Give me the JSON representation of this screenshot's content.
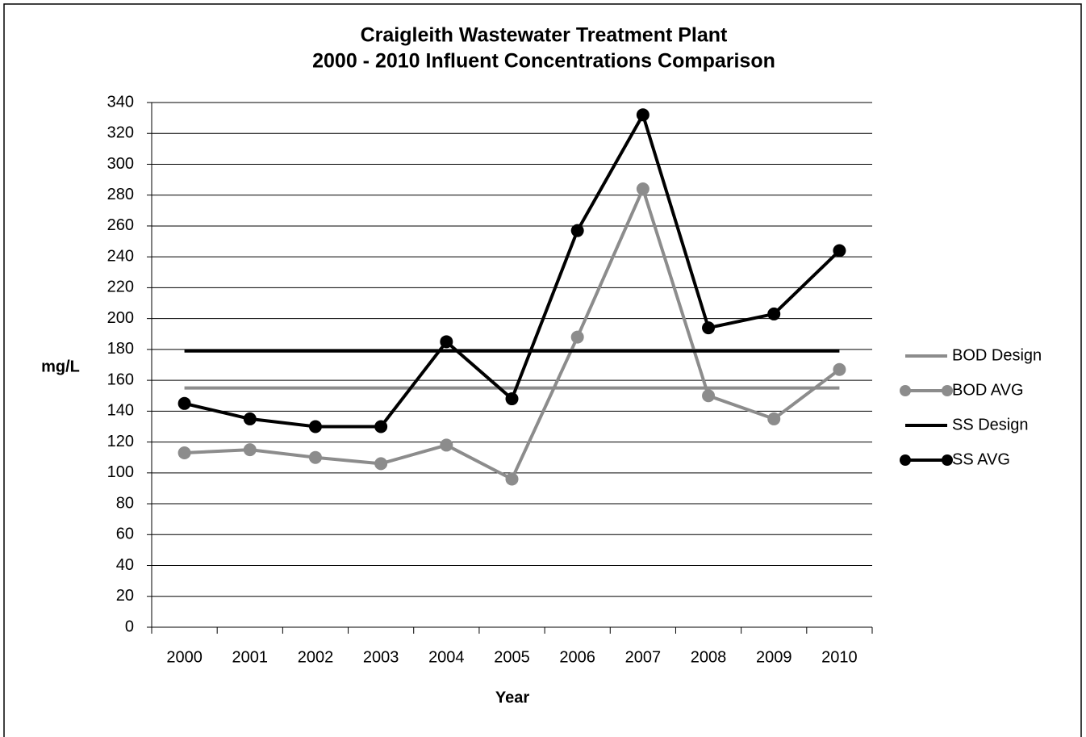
{
  "chart_data": {
    "type": "line",
    "title": [
      "Craigleith Wastewater Treatment Plant",
      "2000 - 2010 Influent Concentrations Comparison"
    ],
    "xlabel": "Year",
    "ylabel": "mg/L",
    "categories": [
      "2000",
      "2001",
      "2002",
      "2003",
      "2004",
      "2005",
      "2006",
      "2007",
      "2008",
      "2009",
      "2010"
    ],
    "series": [
      {
        "name": "BOD Design",
        "color": "#8c8c8c",
        "marker": false,
        "values": [
          155,
          155,
          155,
          155,
          155,
          155,
          155,
          155,
          155,
          155,
          155
        ]
      },
      {
        "name": "BOD AVG",
        "color": "#8c8c8c",
        "marker": true,
        "values": [
          113,
          115,
          110,
          106,
          118,
          96,
          188,
          284,
          150,
          135,
          167
        ]
      },
      {
        "name": "SS Design",
        "color": "#000000",
        "marker": false,
        "values": [
          179,
          179,
          179,
          179,
          179,
          179,
          179,
          179,
          179,
          179,
          179
        ]
      },
      {
        "name": "SS AVG",
        "color": "#000000",
        "marker": true,
        "values": [
          145,
          135,
          130,
          130,
          185,
          148,
          257,
          332,
          194,
          203,
          244
        ]
      }
    ],
    "ylim": [
      0,
      340
    ],
    "yticks": [
      0,
      20,
      40,
      60,
      80,
      100,
      120,
      140,
      160,
      180,
      200,
      220,
      240,
      260,
      280,
      300,
      320,
      340
    ],
    "grid": true,
    "legend": "right"
  }
}
